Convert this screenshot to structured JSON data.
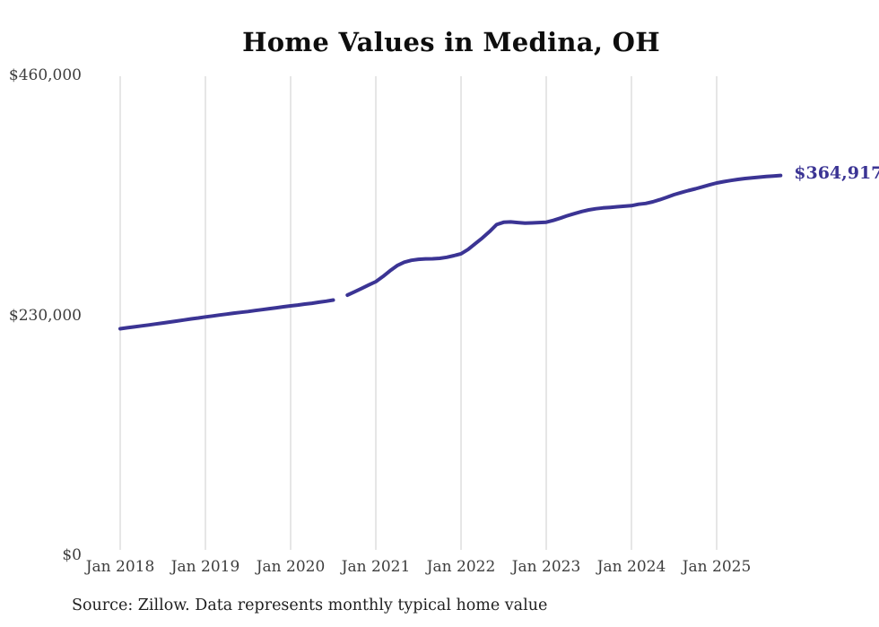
{
  "title": "Home Values in Medina, OH",
  "end_label": "$364,917",
  "source_note": "Source: Zillow. Data represents monthly typical home value",
  "colors": {
    "line": "#3b3494",
    "grid": "#cccccc",
    "axis_text": "#3d3d3d",
    "title_text": "#0e0e0e",
    "source_text": "#1f1f1f",
    "background": "#ffffff"
  },
  "chart_data": {
    "type": "line",
    "title": "Home Values in Medina, OH",
    "xlabel": "",
    "ylabel": "",
    "unit": "USD",
    "grid": "vertical-only",
    "legend_position": "none",
    "ylim": [
      0,
      460000
    ],
    "y_ticks": [
      {
        "value": 0,
        "label": "$0"
      },
      {
        "value": 230000,
        "label": "$230,000"
      },
      {
        "value": 460000,
        "label": "$460,000"
      }
    ],
    "x_tick_labels": [
      "Jan 2018",
      "Jan 2019",
      "Jan 2020",
      "Jan 2021",
      "Jan 2022",
      "Jan 2023",
      "Jan 2024",
      "Jan 2025"
    ],
    "latest_point": {
      "month": "2025-10",
      "value": 364917,
      "label": "$364,917"
    },
    "series": [
      {
        "name": "Monthly typical home value",
        "frequency": "monthly",
        "start_month": "2018-01",
        "end_month": "2025-10",
        "gap_months": [
          "2020-08"
        ],
        "months": [
          "2018-01",
          "2018-02",
          "2018-03",
          "2018-04",
          "2018-05",
          "2018-06",
          "2018-07",
          "2018-08",
          "2018-09",
          "2018-10",
          "2018-11",
          "2018-12",
          "2019-01",
          "2019-02",
          "2019-03",
          "2019-04",
          "2019-05",
          "2019-06",
          "2019-07",
          "2019-08",
          "2019-09",
          "2019-10",
          "2019-11",
          "2019-12",
          "2020-01",
          "2020-02",
          "2020-03",
          "2020-04",
          "2020-05",
          "2020-06",
          "2020-07",
          "2020-08",
          "2020-09",
          "2020-10",
          "2020-11",
          "2020-12",
          "2021-01",
          "2021-02",
          "2021-03",
          "2021-04",
          "2021-05",
          "2021-06",
          "2021-07",
          "2021-08",
          "2021-09",
          "2021-10",
          "2021-11",
          "2021-12",
          "2022-01",
          "2022-02",
          "2022-03",
          "2022-04",
          "2022-05",
          "2022-06",
          "2022-07",
          "2022-08",
          "2022-09",
          "2022-10",
          "2022-11",
          "2022-12",
          "2023-01",
          "2023-02",
          "2023-03",
          "2023-04",
          "2023-05",
          "2023-06",
          "2023-07",
          "2023-08",
          "2023-09",
          "2023-10",
          "2023-11",
          "2023-12",
          "2024-01",
          "2024-02",
          "2024-03",
          "2024-04",
          "2024-05",
          "2024-06",
          "2024-07",
          "2024-08",
          "2024-09",
          "2024-10",
          "2024-11",
          "2024-12",
          "2025-01",
          "2025-02",
          "2025-03",
          "2025-04",
          "2025-05",
          "2025-06",
          "2025-07",
          "2025-08",
          "2025-09",
          "2025-10"
        ],
        "values": [
          218000,
          218900,
          219800,
          220700,
          221600,
          222500,
          223500,
          224400,
          225400,
          226400,
          227400,
          228300,
          229300,
          230200,
          231100,
          232000,
          232900,
          233700,
          234500,
          235400,
          236300,
          237200,
          238100,
          239000,
          239900,
          240700,
          241600,
          242400,
          243400,
          244400,
          245500,
          null,
          250200,
          253400,
          256600,
          259900,
          263100,
          268000,
          273500,
          278500,
          281800,
          283600,
          284500,
          284900,
          285000,
          285500,
          286500,
          288000,
          289800,
          294000,
          299500,
          305000,
          311000,
          317800,
          320000,
          320400,
          319800,
          319200,
          319400,
          319800,
          320100,
          321800,
          324000,
          326400,
          328400,
          330300,
          331900,
          333000,
          333800,
          334300,
          334900,
          335400,
          335900,
          337300,
          338100,
          339600,
          341700,
          344000,
          346500,
          348500,
          350400,
          352100,
          354000,
          355900,
          357700,
          359000,
          360100,
          361100,
          362000,
          362700,
          363300,
          363900,
          364400,
          364917
        ]
      }
    ]
  }
}
